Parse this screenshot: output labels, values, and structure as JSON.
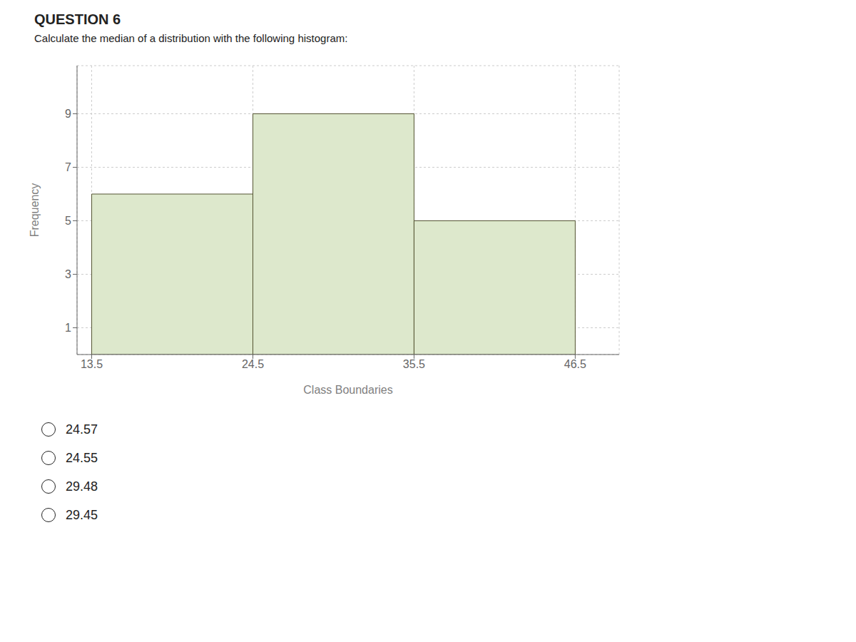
{
  "chart_data": {
    "type": "histogram",
    "title": "QUESTION 6",
    "subtitle": "Calculate the median of a distribution with the following histogram:",
    "bins": [
      13.5,
      24.5,
      35.5,
      46.5
    ],
    "values": [
      6,
      9,
      5
    ],
    "color": "#dde8cc",
    "x_label": "Class Boundaries",
    "y_label": "Frequency",
    "xlim": [
      12.5,
      49.5
    ],
    "ylim": [
      0,
      10.8
    ],
    "xticks": [
      13.5,
      24.5,
      35.5,
      46.5
    ],
    "yticks": [
      1,
      3,
      5,
      7,
      9
    ],
    "grid": true,
    "annotations": [
      "24.57",
      "24.55",
      "29.48",
      "29.45"
    ]
  }
}
